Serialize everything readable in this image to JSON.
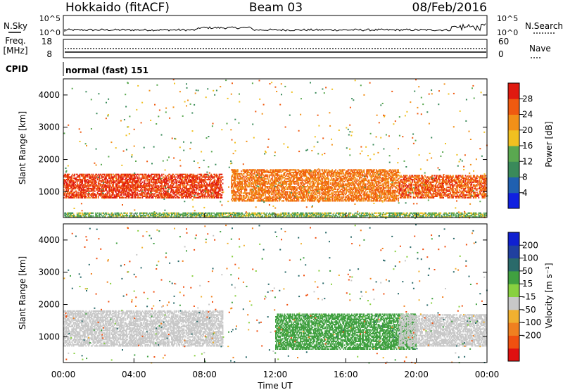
{
  "header": {
    "radar": "Hokkaido (fitACF)",
    "beam": "Beam 03",
    "date": "08/Feb/2016"
  },
  "top_panels": {
    "nsky_label": "N.Sky",
    "nsearch_label": "N.Search",
    "noise_tick_top": "10^5",
    "noise_tick_bottom": "10^0",
    "freq_label_line1": "Freq.",
    "freq_label_line2": "[MHz]",
    "freq_ticks": [
      "18",
      "8"
    ],
    "nave_label": "Nave",
    "nave_ticks": [
      "60",
      "0"
    ],
    "cpid_label": "CPID",
    "cpid_text": "normal (fast) 151"
  },
  "x_axis": {
    "label": "Time UT",
    "ticks": [
      "00:00",
      "04:00",
      "08:00",
      "12:00",
      "16:00",
      "20:00",
      "00:00"
    ]
  },
  "colors": {
    "power": [
      "#1020e0",
      "#2060b0",
      "#3a8a5a",
      "#5aa850",
      "#f0c020",
      "#f29018",
      "#f05a10",
      "#e01a10"
    ],
    "velocity": [
      "#e01010",
      "#f05010",
      "#f08020",
      "#f0b030",
      "#c8c8c8",
      "#88d040",
      "#40a040",
      "#2a6a6a",
      "#2040a0",
      "#1020d0"
    ]
  },
  "chart_data": [
    {
      "type": "heatmap",
      "title": "Power",
      "ylabel": "Slant Range [km]",
      "xlabel": "",
      "x_range_hours": [
        0,
        24
      ],
      "ylim": [
        200,
        4500
      ],
      "y_ticks": [
        "1000",
        "2000",
        "3000",
        "4000"
      ],
      "colorbar": {
        "label": "Power [dB]",
        "ticks": [
          "4",
          "8",
          "12",
          "16",
          "20",
          "24",
          "28"
        ],
        "range": [
          0,
          32
        ]
      },
      "features": [
        {
          "name": "main band",
          "t_start": 0,
          "t_end": 9.0,
          "range_min": 800,
          "range_max": 1550,
          "dominant_db": 28
        },
        {
          "name": "midday streaks",
          "t_start": 9.5,
          "t_end": 19.0,
          "range_min": 700,
          "range_max": 1700,
          "dominant_db": 24
        },
        {
          "name": "evening band",
          "t_start": 19.0,
          "t_end": 24.0,
          "range_min": 800,
          "range_max": 1500,
          "dominant_db": 26
        },
        {
          "name": "near-range echoes",
          "t_start": 0,
          "t_end": 24.0,
          "range_min": 200,
          "range_max": 350,
          "dominant_db": 14
        }
      ]
    },
    {
      "type": "heatmap",
      "title": "Velocity",
      "ylabel": "Slant Range [km]",
      "xlabel": "Time UT",
      "x_range_hours": [
        0,
        24
      ],
      "ylim": [
        200,
        4500
      ],
      "y_ticks": [
        "1000",
        "2000",
        "3000",
        "4000"
      ],
      "colorbar": {
        "label": "Velocity [m s⁻¹]",
        "ticks": [
          "200",
          "100",
          "50",
          "15",
          "-15",
          "-50",
          "-100",
          "-200"
        ],
        "range": [
          -250,
          250
        ]
      },
      "features": [
        {
          "name": "near-zero band",
          "t_start": 0,
          "t_end": 9.0,
          "range_min": 700,
          "range_max": 1800,
          "dominant_velocity": 0
        },
        {
          "name": "positive region",
          "t_start": 12.0,
          "t_end": 20.0,
          "range_min": 600,
          "range_max": 1700,
          "dominant_velocity": 60
        },
        {
          "name": "evening band",
          "t_start": 19.0,
          "t_end": 24.0,
          "range_min": 700,
          "range_max": 1700,
          "dominant_velocity": 0
        }
      ]
    }
  ]
}
